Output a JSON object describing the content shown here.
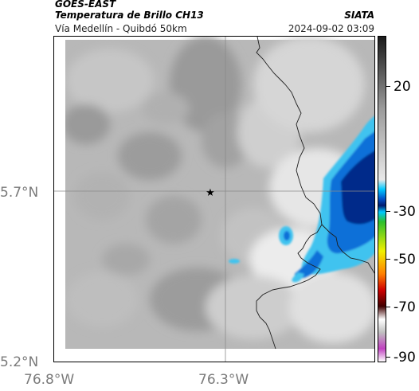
{
  "header": {
    "satellite": "GOES-EAST",
    "product": "Temperatura de Brillo CH13",
    "region": "Vía Medellín - Quibdó 50km",
    "organization": "SIATA",
    "timestamp": "2024-09-02 03:09"
  },
  "axes": {
    "lat_labels": [
      "5.7°N",
      "5.2°N"
    ],
    "lon_labels": [
      "76.8°W",
      "76.3°W"
    ]
  },
  "colorbar": {
    "labels": [
      "20",
      "-30",
      "-50",
      "-70",
      "-90"
    ],
    "colors": {
      "warm_gray_top": "#1a1a1a",
      "warm_gray_mid": "#9a9a9a",
      "light_gray": "#e8e8e8",
      "cyan": "#00c8ff",
      "blue": "#0050c8",
      "navy": "#001a6e",
      "green": "#2cc02c",
      "yellow": "#f0f000",
      "orange": "#ff8000",
      "red": "#d00000",
      "dark_red": "#400000",
      "magenta": "#c040c0"
    }
  },
  "map": {
    "marker_icon": "star-icon",
    "cloud_colors": {
      "gray_dark": "#8f8f8f",
      "gray_mid": "#b4b4b4",
      "gray_light": "#d4d4d4",
      "near_white": "#f2f2f2",
      "cold_cyan": "#3fc3ef",
      "cold_blue": "#0a6fd8",
      "cold_navy": "#022a8a"
    }
  }
}
